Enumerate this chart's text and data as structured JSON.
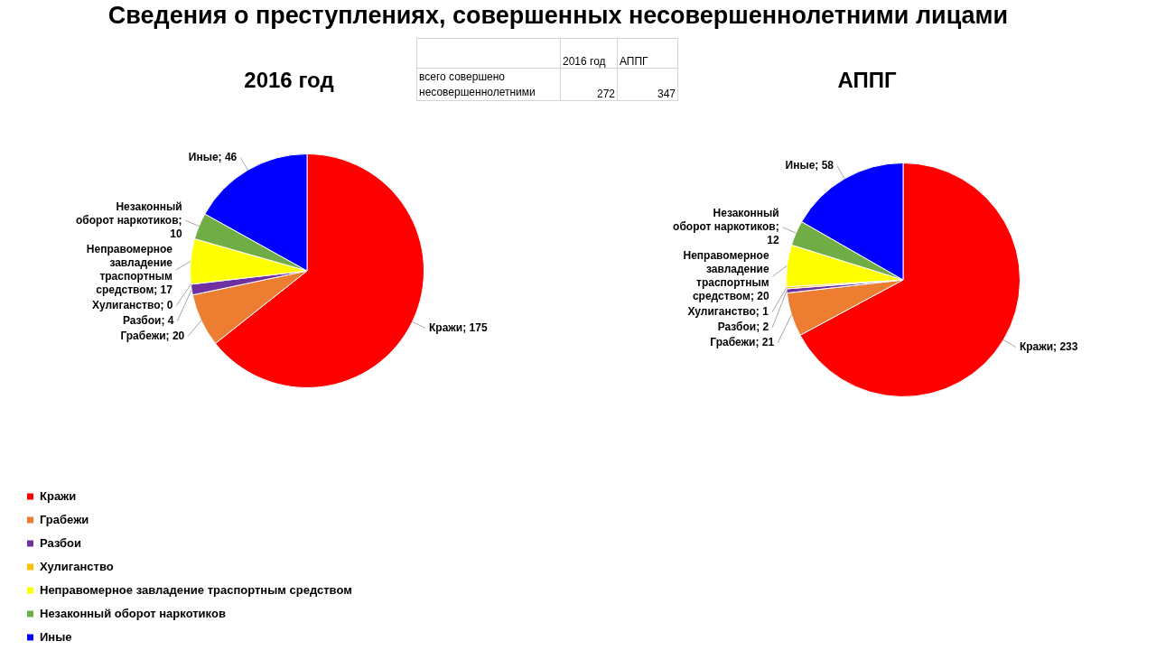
{
  "chart_data": [
    {
      "type": "other",
      "title": "Сведения о преступлениях, совершенных несовершеннолетними лицами",
      "categories": [
        "2016 год",
        "АППГ"
      ],
      "y_categories": [
        "всего совершено несовершеннолетними"
      ],
      "values": [
        272,
        347
      ],
      "data_labels": true
    },
    {
      "type": "pie",
      "title": "2016 год",
      "categories": [
        "Кражи",
        "Грабежи",
        "Разбои",
        "Хулиганство",
        "Неправомерное завладение траспортным средством",
        "Незаконный оборот наркотиков",
        "Иные"
      ],
      "values": [
        175,
        20,
        4,
        0,
        17,
        10,
        46
      ],
      "colors": [
        "#ff0000",
        "#ed7d31",
        "#7030a0",
        "#ffc000",
        "#ffff00",
        "#70ad47",
        "#0000ff"
      ],
      "value_labels": [
        "Кражи; 175",
        "Грабежи; 20",
        "Разбои; 4",
        "Хулиганство; 0",
        "Неправомерное завладение траспортным средством; 17",
        "Незаконный оборот наркотиков; 10",
        "Иные; 46"
      ],
      "legend": "bottom left"
    },
    {
      "type": "pie",
      "title": "АППГ",
      "values": [
        233,
        21,
        2,
        1,
        20,
        12,
        58
      ],
      "colors": [
        "#ff0000",
        "#ed7d31",
        "#7030a0",
        "#ffc000",
        "#ffff00",
        "#70ad47",
        "#0000ff"
      ],
      "value_labels": [
        "Кражи; 233",
        "Грабежи; 21",
        "Разбои; 2",
        "Хулиганство; 1",
        "Неправомерное завладение траспортным средством; 20",
        "Незаконный оборот наркотиков; 12",
        "Иные; 58"
      ]
    }
  ]
}
